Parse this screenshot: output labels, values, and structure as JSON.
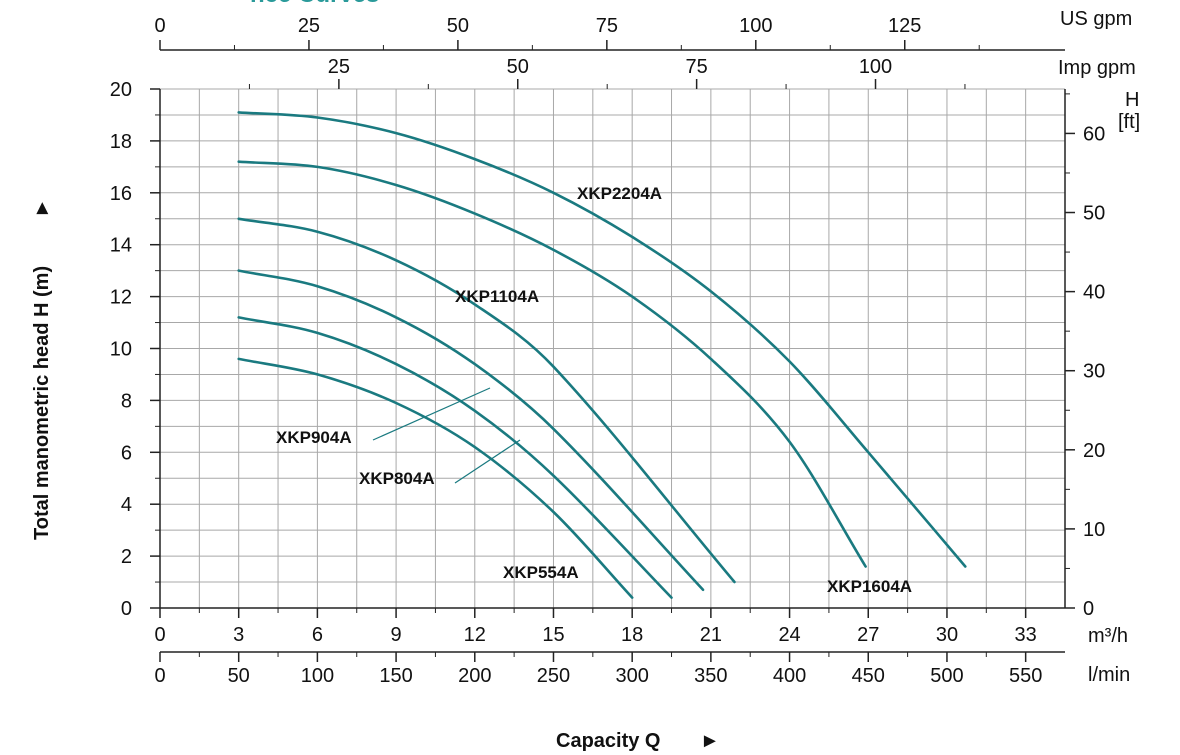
{
  "colors": {
    "curve": "#1a7a80",
    "grid": "#a8a8a8",
    "axis": "#222222",
    "title": "#2a9a9a"
  },
  "chart_data": {
    "type": "line",
    "title_fragment": "nce Curves",
    "xlabel": "Capacity Q",
    "xlabel_arrow": "►",
    "ylabel": "Total manometric head H (m)",
    "ylabel_arrow": "►",
    "xlim": [
      0,
      34.5
    ],
    "ylim": [
      0,
      20
    ],
    "grid": true,
    "x_unit": "m³/h",
    "x_ticks": [
      0,
      3,
      6,
      9,
      12,
      15,
      18,
      21,
      24,
      27,
      30,
      33
    ],
    "y_ticks": [
      0,
      2,
      4,
      6,
      8,
      10,
      12,
      14,
      16,
      18,
      20
    ],
    "secondary_axes": {
      "lmin": {
        "unit": "l/min",
        "ticks": [
          0,
          50,
          100,
          150,
          200,
          250,
          300,
          350,
          400,
          450,
          500,
          550
        ]
      },
      "us_gpm": {
        "unit": "US gpm",
        "ticks": [
          0,
          25,
          50,
          75,
          100,
          125
        ]
      },
      "imp_gpm": {
        "unit": "Imp gpm",
        "ticks": [
          25,
          50,
          75,
          100
        ]
      },
      "head_ft": {
        "unit_line1": "H",
        "unit_line2": "[ft]",
        "ticks": [
          0,
          10,
          20,
          30,
          40,
          50,
          60
        ]
      }
    },
    "series": [
      {
        "name": "XKP554A",
        "x": [
          3,
          6,
          9,
          12,
          15,
          18
        ],
        "y": [
          9.6,
          9.0,
          7.9,
          6.2,
          3.7,
          0.4
        ]
      },
      {
        "name": "XKP804A",
        "x": [
          3,
          6,
          9,
          12,
          15,
          19.5
        ],
        "y": [
          11.2,
          10.6,
          9.4,
          7.6,
          5.1,
          0.4
        ]
      },
      {
        "name": "XKP904A",
        "x": [
          3,
          6,
          9,
          12,
          15,
          20.7
        ],
        "y": [
          13.0,
          12.4,
          11.2,
          9.4,
          6.9,
          0.7
        ]
      },
      {
        "name": "XKP1104A",
        "x": [
          3,
          6,
          9,
          12,
          15,
          21.9
        ],
        "y": [
          15.0,
          14.5,
          13.4,
          11.7,
          9.3,
          1.0
        ]
      },
      {
        "name": "XKP1604A",
        "x": [
          3,
          6,
          9,
          12,
          15,
          18,
          21,
          24,
          26.9
        ],
        "y": [
          17.2,
          17.0,
          16.3,
          15.2,
          13.8,
          12.0,
          9.6,
          6.4,
          1.6
        ]
      },
      {
        "name": "XKP2204A",
        "x": [
          3,
          6,
          9,
          12,
          15,
          18,
          21,
          24,
          27,
          30.7
        ],
        "y": [
          19.1,
          18.9,
          18.3,
          17.3,
          16.0,
          14.3,
          12.2,
          9.5,
          6.0,
          1.6
        ]
      }
    ],
    "curve_labels": [
      "XKP2204A",
      "XKP1104A",
      "XKP904A",
      "XKP804A",
      "XKP554A",
      "XKP1604A"
    ]
  }
}
